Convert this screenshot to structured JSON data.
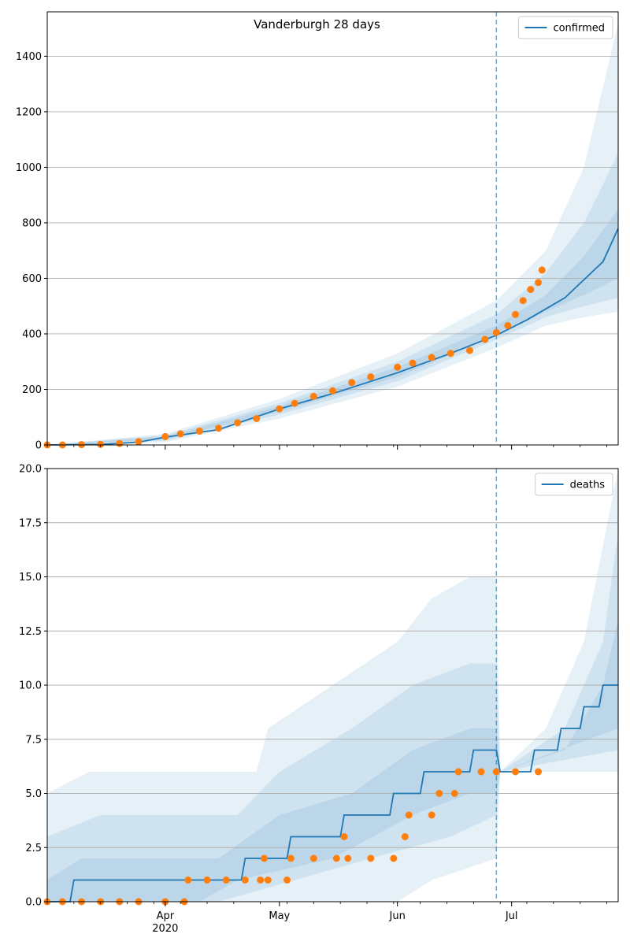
{
  "chart_data": [
    {
      "type": "line",
      "title": "Vanderburgh 28 days",
      "legend": {
        "label": "confirmed",
        "placement": "top-right"
      },
      "ylim": [
        0,
        1560
      ],
      "yticks": [
        0,
        200,
        400,
        600,
        800,
        1000,
        1200,
        1400
      ],
      "ytick_labels": [
        "0",
        "200",
        "400",
        "600",
        "800",
        "1000",
        "1200",
        "1400"
      ],
      "grid": "horizontal",
      "forecast_start": "2020-06-27",
      "colors": {
        "line": "#1f77b4",
        "points": "#ff7f0e",
        "band": "#1f77b4"
      },
      "series": [
        {
          "name": "confirmed",
          "kind": "line",
          "points": [
            [
              "2020-03-01",
              0
            ],
            [
              "2020-03-15",
              2
            ],
            [
              "2020-03-25",
              10
            ],
            [
              "2020-04-01",
              28
            ],
            [
              "2020-04-15",
              55
            ],
            [
              "2020-05-01",
              130
            ],
            [
              "2020-05-15",
              185
            ],
            [
              "2020-06-01",
              260
            ],
            [
              "2020-06-15",
              330
            ],
            [
              "2020-06-27",
              395
            ],
            [
              "2020-07-05",
              450
            ],
            [
              "2020-07-15",
              530
            ],
            [
              "2020-07-25",
              660
            ],
            [
              "2020-07-29",
              780
            ]
          ]
        },
        {
          "name": "",
          "kind": "scatter",
          "points": [
            [
              "2020-03-01",
              0
            ],
            [
              "2020-03-05",
              0
            ],
            [
              "2020-03-10",
              1
            ],
            [
              "2020-03-15",
              2
            ],
            [
              "2020-03-20",
              5
            ],
            [
              "2020-03-25",
              12
            ],
            [
              "2020-04-01",
              30
            ],
            [
              "2020-04-05",
              40
            ],
            [
              "2020-04-10",
              50
            ],
            [
              "2020-04-15",
              60
            ],
            [
              "2020-04-20",
              80
            ],
            [
              "2020-04-25",
              95
            ],
            [
              "2020-05-01",
              130
            ],
            [
              "2020-05-05",
              150
            ],
            [
              "2020-05-10",
              175
            ],
            [
              "2020-05-15",
              195
            ],
            [
              "2020-05-20",
              225
            ],
            [
              "2020-05-25",
              245
            ],
            [
              "2020-06-01",
              280
            ],
            [
              "2020-06-05",
              295
            ],
            [
              "2020-06-10",
              315
            ],
            [
              "2020-06-15",
              330
            ],
            [
              "2020-06-20",
              340
            ],
            [
              "2020-06-24",
              380
            ],
            [
              "2020-06-27",
              405
            ],
            [
              "2020-06-30",
              430
            ],
            [
              "2020-07-02",
              470
            ],
            [
              "2020-07-04",
              520
            ],
            [
              "2020-07-06",
              560
            ],
            [
              "2020-07-08",
              585
            ],
            [
              "2020-07-09",
              630
            ]
          ]
        }
      ],
      "bands": [
        {
          "upper": [
            [
              "2020-03-01",
              0
            ],
            [
              "2020-04-01",
              40
            ],
            [
              "2020-05-01",
              165
            ],
            [
              "2020-06-01",
              330
            ],
            [
              "2020-06-27",
              520
            ],
            [
              "2020-07-10",
              700
            ],
            [
              "2020-07-20",
              1000
            ],
            [
              "2020-07-29",
              1520
            ]
          ],
          "lower": [
            [
              "2020-03-01",
              0
            ],
            [
              "2020-04-01",
              10
            ],
            [
              "2020-05-01",
              95
            ],
            [
              "2020-06-01",
              210
            ],
            [
              "2020-06-27",
              350
            ],
            [
              "2020-07-10",
              430
            ],
            [
              "2020-07-20",
              460
            ],
            [
              "2020-07-29",
              480
            ]
          ]
        },
        {
          "upper": [
            [
              "2020-03-01",
              0
            ],
            [
              "2020-04-01",
              35
            ],
            [
              "2020-05-01",
              150
            ],
            [
              "2020-06-01",
              300
            ],
            [
              "2020-06-27",
              470
            ],
            [
              "2020-07-10",
              620
            ],
            [
              "2020-07-20",
              800
            ],
            [
              "2020-07-29",
              1050
            ]
          ],
          "lower": [
            [
              "2020-03-01",
              0
            ],
            [
              "2020-04-01",
              15
            ],
            [
              "2020-05-01",
              110
            ],
            [
              "2020-06-01",
              230
            ],
            [
              "2020-06-27",
              380
            ],
            [
              "2020-07-10",
              460
            ],
            [
              "2020-07-20",
              500
            ],
            [
              "2020-07-29",
              530
            ]
          ]
        },
        {
          "upper": [
            [
              "2020-03-01",
              0
            ],
            [
              "2020-04-01",
              30
            ],
            [
              "2020-05-01",
              140
            ],
            [
              "2020-06-01",
              280
            ],
            [
              "2020-06-27",
              430
            ],
            [
              "2020-07-10",
              540
            ],
            [
              "2020-07-20",
              680
            ],
            [
              "2020-07-29",
              850
            ]
          ],
          "lower": [
            [
              "2020-03-01",
              0
            ],
            [
              "2020-04-01",
              20
            ],
            [
              "2020-05-01",
              120
            ],
            [
              "2020-06-01",
              245
            ],
            [
              "2020-06-27",
              395
            ],
            [
              "2020-07-10",
              480
            ],
            [
              "2020-07-20",
              540
            ],
            [
              "2020-07-29",
              600
            ]
          ]
        }
      ]
    },
    {
      "type": "line",
      "legend": {
        "label": "deaths",
        "placement": "top-right"
      },
      "ylim": [
        0,
        20
      ],
      "yticks": [
        0,
        2.5,
        5,
        7.5,
        10,
        12.5,
        15,
        17.5,
        20
      ],
      "ytick_labels": [
        "0.0",
        "2.5",
        "5.0",
        "7.5",
        "10.0",
        "12.5",
        "15.0",
        "17.5",
        "20.0"
      ],
      "grid": "horizontal",
      "forecast_start": "2020-06-27",
      "colors": {
        "line": "#1f77b4",
        "points": "#ff7f0e",
        "band": "#1f77b4"
      },
      "series": [
        {
          "name": "deaths",
          "kind": "step",
          "points": [
            [
              "2020-03-01",
              0
            ],
            [
              "2020-03-07",
              0
            ],
            [
              "2020-03-08",
              1
            ],
            [
              "2020-04-21",
              1
            ],
            [
              "2020-04-22",
              2
            ],
            [
              "2020-05-03",
              2
            ],
            [
              "2020-05-04",
              3
            ],
            [
              "2020-05-17",
              3
            ],
            [
              "2020-05-18",
              4
            ],
            [
              "2020-05-30",
              4
            ],
            [
              "2020-05-31",
              5
            ],
            [
              "2020-06-07",
              5
            ],
            [
              "2020-06-08",
              6
            ],
            [
              "2020-06-20",
              6
            ],
            [
              "2020-06-21",
              7
            ],
            [
              "2020-06-27",
              7
            ],
            [
              "2020-06-28",
              6
            ],
            [
              "2020-07-06",
              6
            ],
            [
              "2020-07-07",
              7
            ],
            [
              "2020-07-13",
              7
            ],
            [
              "2020-07-14",
              8
            ],
            [
              "2020-07-19",
              8
            ],
            [
              "2020-07-20",
              9
            ],
            [
              "2020-07-24",
              9
            ],
            [
              "2020-07-25",
              10
            ],
            [
              "2020-07-29",
              10
            ]
          ]
        },
        {
          "name": "",
          "kind": "scatter",
          "points": [
            [
              "2020-03-01",
              0
            ],
            [
              "2020-03-05",
              0
            ],
            [
              "2020-03-10",
              0
            ],
            [
              "2020-03-15",
              0
            ],
            [
              "2020-03-20",
              0
            ],
            [
              "2020-03-25",
              0
            ],
            [
              "2020-04-01",
              0
            ],
            [
              "2020-04-06",
              0
            ],
            [
              "2020-04-07",
              1
            ],
            [
              "2020-04-12",
              1
            ],
            [
              "2020-04-17",
              1
            ],
            [
              "2020-04-22",
              1
            ],
            [
              "2020-04-26",
              1
            ],
            [
              "2020-04-27",
              2
            ],
            [
              "2020-04-28",
              1
            ],
            [
              "2020-05-03",
              1
            ],
            [
              "2020-05-04",
              2
            ],
            [
              "2020-05-10",
              2
            ],
            [
              "2020-05-16",
              2
            ],
            [
              "2020-05-18",
              3
            ],
            [
              "2020-05-19",
              2
            ],
            [
              "2020-05-25",
              2
            ],
            [
              "2020-05-31",
              2
            ],
            [
              "2020-06-03",
              3
            ],
            [
              "2020-06-04",
              4
            ],
            [
              "2020-06-10",
              4
            ],
            [
              "2020-06-12",
              5
            ],
            [
              "2020-06-16",
              5
            ],
            [
              "2020-06-17",
              6
            ],
            [
              "2020-06-23",
              6
            ],
            [
              "2020-06-27",
              6
            ],
            [
              "2020-07-02",
              6
            ],
            [
              "2020-07-08",
              6
            ]
          ]
        }
      ],
      "bands": [
        {
          "upper": [
            [
              "2020-03-01",
              5
            ],
            [
              "2020-03-12",
              6
            ],
            [
              "2020-04-25",
              6
            ],
            [
              "2020-04-28",
              8
            ],
            [
              "2020-05-15",
              10
            ],
            [
              "2020-06-01",
              12
            ],
            [
              "2020-06-10",
              14
            ],
            [
              "2020-06-20",
              15
            ],
            [
              "2020-06-27",
              15
            ],
            [
              "2020-06-28",
              6
            ],
            [
              "2020-07-10",
              8
            ],
            [
              "2020-07-20",
              12
            ],
            [
              "2020-07-29",
              20
            ]
          ],
          "lower": [
            [
              "2020-03-01",
              0
            ],
            [
              "2020-04-10",
              0
            ],
            [
              "2020-05-20",
              0
            ],
            [
              "2020-06-01",
              0
            ],
            [
              "2020-06-10",
              1
            ],
            [
              "2020-06-27",
              2
            ],
            [
              "2020-06-28",
              6
            ],
            [
              "2020-07-29",
              6
            ]
          ]
        },
        {
          "upper": [
            [
              "2020-03-01",
              3
            ],
            [
              "2020-03-15",
              4
            ],
            [
              "2020-04-20",
              4
            ],
            [
              "2020-05-01",
              6
            ],
            [
              "2020-05-20",
              8
            ],
            [
              "2020-06-05",
              10
            ],
            [
              "2020-06-20",
              11
            ],
            [
              "2020-06-27",
              11
            ],
            [
              "2020-06-28",
              6
            ],
            [
              "2020-07-15",
              8
            ],
            [
              "2020-07-25",
              12
            ],
            [
              "2020-07-29",
              17
            ]
          ],
          "lower": [
            [
              "2020-03-01",
              0
            ],
            [
              "2020-04-15",
              0
            ],
            [
              "2020-05-05",
              1
            ],
            [
              "2020-05-25",
              2
            ],
            [
              "2020-06-15",
              3
            ],
            [
              "2020-06-27",
              4
            ],
            [
              "2020-06-28",
              6
            ],
            [
              "2020-07-29",
              7
            ]
          ]
        },
        {
          "upper": [
            [
              "2020-03-01",
              1
            ],
            [
              "2020-03-10",
              2
            ],
            [
              "2020-04-15",
              2
            ],
            [
              "2020-05-01",
              4
            ],
            [
              "2020-05-20",
              5
            ],
            [
              "2020-06-05",
              7
            ],
            [
              "2020-06-20",
              8
            ],
            [
              "2020-06-27",
              8
            ],
            [
              "2020-06-28",
              6
            ],
            [
              "2020-07-15",
              7
            ],
            [
              "2020-07-25",
              10
            ],
            [
              "2020-07-29",
              13
            ]
          ],
          "lower": [
            [
              "2020-03-01",
              0
            ],
            [
              "2020-04-10",
              0
            ],
            [
              "2020-04-20",
              1
            ],
            [
              "2020-05-15",
              2
            ],
            [
              "2020-06-05",
              4
            ],
            [
              "2020-06-20",
              5
            ],
            [
              "2020-06-27",
              5
            ],
            [
              "2020-06-28",
              6
            ],
            [
              "2020-07-29",
              8
            ]
          ]
        }
      ]
    }
  ],
  "x_axis": {
    "start": "2020-03-01",
    "end": "2020-07-29",
    "major_ticks": [
      {
        "date": "2020-04-01",
        "label": "Apr",
        "sublabel": "2020"
      },
      {
        "date": "2020-05-01",
        "label": "May",
        "sublabel": ""
      },
      {
        "date": "2020-06-01",
        "label": "Jun",
        "sublabel": ""
      },
      {
        "date": "2020-07-01",
        "label": "Jul",
        "sublabel": ""
      }
    ]
  }
}
